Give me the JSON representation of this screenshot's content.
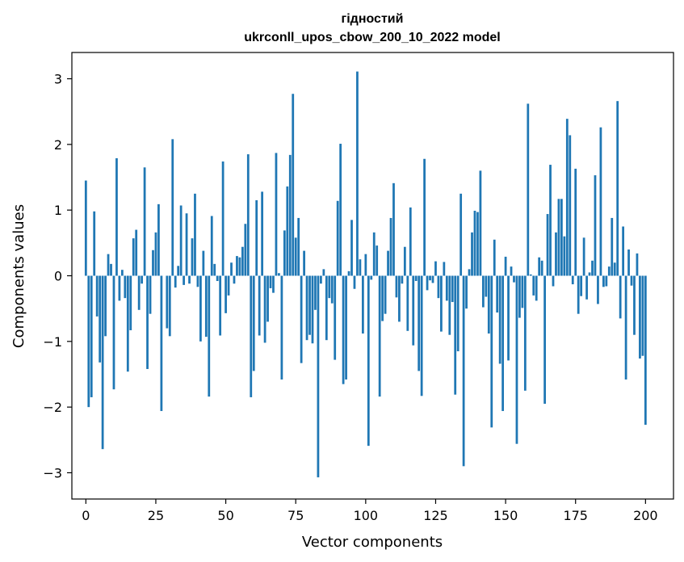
{
  "chart_data": {
    "type": "bar",
    "title_line1": "гідностий",
    "title_line2": "ukrconll_upos_cbow_200_10_2022 model",
    "xlabel": "Vector components",
    "ylabel": "Components values",
    "xlim": [
      -5,
      210
    ],
    "ylim": [
      -3.4,
      3.4
    ],
    "xticks": [
      0,
      25,
      50,
      75,
      100,
      125,
      150,
      175,
      200
    ],
    "xtick_labels": [
      "0",
      "25",
      "50",
      "75",
      "100",
      "125",
      "150",
      "175",
      "200"
    ],
    "yticks": [
      -3,
      -2,
      -1,
      0,
      1,
      2,
      3
    ],
    "ytick_labels": [
      "−3",
      "−2",
      "−1",
      "0",
      "1",
      "2",
      "3"
    ],
    "bar_color": "#1f77b4",
    "values": [
      1.45,
      -2.0,
      -1.85,
      0.98,
      -0.62,
      -1.32,
      -2.64,
      -0.92,
      0.33,
      0.18,
      -1.73,
      1.79,
      -0.38,
      0.09,
      -0.34,
      -1.46,
      -0.83,
      0.57,
      0.7,
      -0.52,
      -0.12,
      1.65,
      -1.42,
      -0.58,
      0.39,
      0.66,
      1.09,
      -2.06,
      0.0,
      -0.8,
      -0.92,
      2.08,
      -0.18,
      0.15,
      1.07,
      -0.14,
      0.95,
      -0.12,
      0.57,
      1.25,
      -0.17,
      -1.0,
      0.38,
      -0.93,
      -1.84,
      0.91,
      0.18,
      -0.08,
      -0.91,
      1.74,
      -0.57,
      -0.3,
      0.2,
      -0.12,
      0.3,
      0.28,
      0.44,
      0.79,
      1.85,
      -1.85,
      -1.45,
      1.15,
      -0.91,
      1.28,
      -1.02,
      -0.7,
      -0.19,
      -0.26,
      1.87,
      0.04,
      -1.58,
      0.69,
      1.36,
      1.84,
      2.77,
      0.58,
      0.88,
      -1.33,
      0.38,
      -0.98,
      -0.9,
      -1.03,
      -0.52,
      -3.07,
      -0.12,
      0.1,
      -0.98,
      -0.34,
      -0.42,
      -1.28,
      1.14,
      2.01,
      -1.65,
      -1.58,
      0.07,
      0.85,
      -0.2,
      3.11,
      0.25,
      -0.88,
      0.33,
      -2.59,
      -0.06,
      0.66,
      0.46,
      -1.84,
      -0.69,
      -0.58,
      0.38,
      0.88,
      1.41,
      -0.33,
      -0.7,
      -0.12,
      0.44,
      -0.84,
      1.04,
      -1.06,
      -0.08,
      -1.45,
      -1.83,
      1.78,
      -0.22,
      -0.07,
      -0.11,
      0.22,
      -0.34,
      -0.85,
      0.21,
      -0.38,
      -0.9,
      -0.4,
      -1.81,
      -1.15,
      1.25,
      -2.9,
      -0.5,
      0.1,
      0.66,
      0.99,
      0.97,
      1.6,
      -0.48,
      -0.32,
      -0.88,
      -2.31,
      0.55,
      -0.56,
      -1.34,
      -2.06,
      0.29,
      -1.29,
      0.14,
      -0.1,
      -2.56,
      -0.64,
      -0.49,
      -1.75,
      2.62,
      0.02,
      -0.3,
      -0.38,
      0.28,
      0.23,
      -1.95,
      0.94,
      1.69,
      -0.16,
      0.66,
      1.17,
      1.17,
      0.6,
      2.39,
      2.14,
      -0.13,
      1.63,
      -0.58,
      -0.31,
      0.58,
      -0.36,
      0.05,
      0.23,
      1.53,
      -0.43,
      2.26,
      -0.17,
      -0.16,
      0.14,
      0.88,
      0.2,
      2.66,
      -0.65,
      0.75,
      -1.58,
      0.4,
      -0.15,
      -0.9,
      0.34,
      -1.26,
      -1.22,
      -2.27
    ]
  }
}
